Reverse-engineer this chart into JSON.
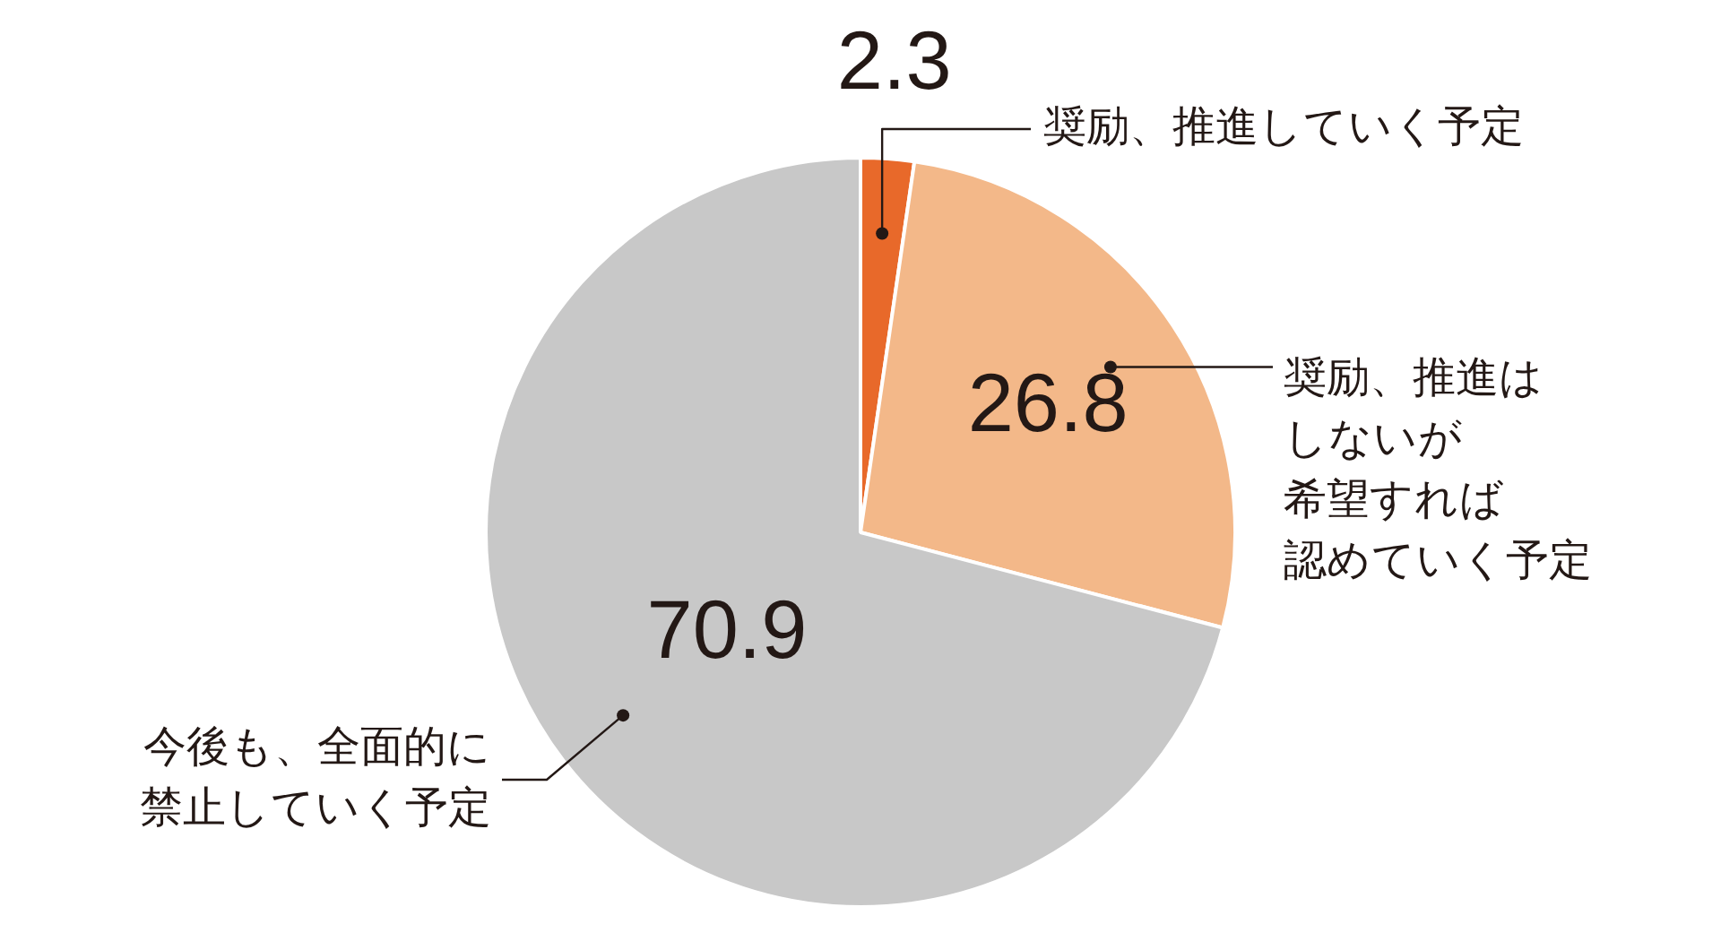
{
  "chart_data": {
    "type": "pie",
    "categories": [
      "奨励、推進していく予定",
      "奨励、推進はしないが希望すれば認めていく予定",
      "今後も、全面的に禁止していく予定"
    ],
    "values": [
      2.3,
      26.8,
      70.9
    ],
    "colors": [
      "#e8692a",
      "#f3b889",
      "#c8c8c8"
    ],
    "data_labels": true,
    "legend": false
  }
}
